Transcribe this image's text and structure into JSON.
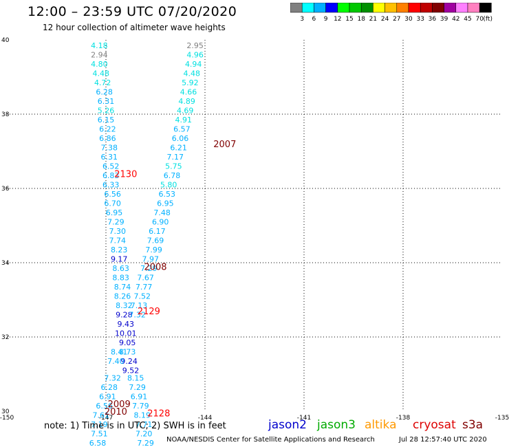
{
  "header": {
    "title": "12:00 – 23:59 UTC 07/20/2020",
    "subtitle": "12 hour collection of altimeter wave heights"
  },
  "colorbar": {
    "colors": [
      "#808080",
      "#00ffff",
      "#00b0ff",
      "#0000ff",
      "#00ff00",
      "#00c800",
      "#009000",
      "#ffff00",
      "#ffc000",
      "#ff8000",
      "#ff0000",
      "#c00000",
      "#800000",
      "#a000a0",
      "#ff80ff",
      "#ff80c0",
      "#000000"
    ],
    "labels": [
      "3",
      "6",
      "9",
      "12",
      "15",
      "18",
      "21",
      "24",
      "27",
      "30",
      "33",
      "36",
      "39",
      "42",
      "45",
      "70"
    ],
    "units": "(ft)"
  },
  "footer": {
    "note": "note: 1) Time is in UTC; 2) SWH is in feet",
    "credit": "NOAA/NESDIS Center for Satellite Applications and Research",
    "generated": "Jul 28 12:57:40 UTC 2020"
  },
  "legend": [
    {
      "name": "jason2",
      "color": "#0000cc"
    },
    {
      "name": "jason3",
      "color": "#00aa00"
    },
    {
      "name": "altika",
      "color": "#ff9900"
    },
    {
      "name": "cryosat",
      "color": "#dd0000"
    },
    {
      "name": "s3a",
      "color": "#800000"
    }
  ],
  "map": {
    "lon_range": [
      -150,
      -135
    ],
    "lat_range": [
      30,
      40
    ],
    "lon_ticks": [
      "-150",
      "-147",
      "-144",
      "-141",
      "-138",
      "-135"
    ],
    "lat_ticks": [
      "30",
      "32",
      "34",
      "36",
      "38",
      "40"
    ],
    "lon_tick_values": [
      -150,
      -147,
      -144,
      -141,
      -138,
      -135
    ],
    "lat_tick_values": [
      30,
      32,
      34,
      36,
      38,
      40
    ]
  },
  "pass_labels": [
    {
      "text": "2007",
      "lon": -143.4,
      "lat": 37.2,
      "color": "#800000"
    },
    {
      "text": "2130",
      "lon": -146.4,
      "lat": 36.4,
      "color": "#ff0000"
    },
    {
      "text": "2008",
      "lon": -145.5,
      "lat": 33.9,
      "color": "#800000"
    },
    {
      "text": "2129",
      "lon": -145.7,
      "lat": 32.7,
      "color": "#ff0000"
    },
    {
      "text": "2009",
      "lon": -146.6,
      "lat": 30.2,
      "color": "#800000"
    },
    {
      "text": "2010",
      "lon": -146.7,
      "lat": 30.0,
      "color": "#800000"
    },
    {
      "text": "2128",
      "lon": -145.4,
      "lat": 29.95,
      "color": "#ff0000"
    }
  ],
  "observations": [
    {
      "v": "4.18",
      "lon": -147.2,
      "lat": 39.85,
      "c": "#00e0e0"
    },
    {
      "v": "2.94",
      "lon": -147.2,
      "lat": 39.6,
      "c": "#808080"
    },
    {
      "v": "4.80",
      "lon": -147.2,
      "lat": 39.35,
      "c": "#00e0e0"
    },
    {
      "v": "4.48",
      "lon": -147.15,
      "lat": 39.1,
      "c": "#00e0e0"
    },
    {
      "v": "4.72",
      "lon": -147.1,
      "lat": 38.85,
      "c": "#00e0e0"
    },
    {
      "v": "6.28",
      "lon": -147.05,
      "lat": 38.6,
      "c": "#00b0ff"
    },
    {
      "v": "6.31",
      "lon": -147.0,
      "lat": 38.35,
      "c": "#00b0ff"
    },
    {
      "v": "5.26",
      "lon": -147.0,
      "lat": 38.1,
      "c": "#00e0e0"
    },
    {
      "v": "6.15",
      "lon": -147.0,
      "lat": 37.85,
      "c": "#00b0ff"
    },
    {
      "v": "6.22",
      "lon": -146.95,
      "lat": 37.6,
      "c": "#00b0ff"
    },
    {
      "v": "6.86",
      "lon": -146.95,
      "lat": 37.35,
      "c": "#00b0ff"
    },
    {
      "v": "7.38",
      "lon": -146.9,
      "lat": 37.1,
      "c": "#00b0ff"
    },
    {
      "v": "6.31",
      "lon": -146.9,
      "lat": 36.85,
      "c": "#00b0ff"
    },
    {
      "v": "6.52",
      "lon": -146.85,
      "lat": 36.6,
      "c": "#00b0ff"
    },
    {
      "v": "6.83",
      "lon": -146.85,
      "lat": 36.35,
      "c": "#00b0ff"
    },
    {
      "v": "6.33",
      "lon": -146.85,
      "lat": 36.1,
      "c": "#00b0ff"
    },
    {
      "v": "6.56",
      "lon": -146.8,
      "lat": 35.85,
      "c": "#00b0ff"
    },
    {
      "v": "6.70",
      "lon": -146.8,
      "lat": 35.6,
      "c": "#00b0ff"
    },
    {
      "v": "6.95",
      "lon": -146.75,
      "lat": 35.35,
      "c": "#00b0ff"
    },
    {
      "v": "7.29",
      "lon": -146.7,
      "lat": 35.1,
      "c": "#00b0ff"
    },
    {
      "v": "7.30",
      "lon": -146.65,
      "lat": 34.85,
      "c": "#00b0ff"
    },
    {
      "v": "7.74",
      "lon": -146.65,
      "lat": 34.6,
      "c": "#00b0ff"
    },
    {
      "v": "8.23",
      "lon": -146.6,
      "lat": 34.35,
      "c": "#00b0ff"
    },
    {
      "v": "9.17",
      "lon": -146.6,
      "lat": 34.1,
      "c": "#0000cc"
    },
    {
      "v": "8.63",
      "lon": -146.55,
      "lat": 33.85,
      "c": "#00b0ff"
    },
    {
      "v": "8.83",
      "lon": -146.55,
      "lat": 33.6,
      "c": "#00b0ff"
    },
    {
      "v": "8.74",
      "lon": -146.5,
      "lat": 33.35,
      "c": "#00b0ff"
    },
    {
      "v": "8.26",
      "lon": -146.5,
      "lat": 33.1,
      "c": "#00b0ff"
    },
    {
      "v": "8.32",
      "lon": -146.45,
      "lat": 32.85,
      "c": "#00b0ff"
    },
    {
      "v": "9.28",
      "lon": -146.45,
      "lat": 32.6,
      "c": "#0000cc"
    },
    {
      "v": "9.43",
      "lon": -146.4,
      "lat": 32.35,
      "c": "#0000cc"
    },
    {
      "v": "10.01",
      "lon": -146.4,
      "lat": 32.1,
      "c": "#0000cc"
    },
    {
      "v": "9.05",
      "lon": -146.35,
      "lat": 31.85,
      "c": "#0000cc"
    },
    {
      "v": "8.73",
      "lon": -146.35,
      "lat": 31.6,
      "c": "#00b0ff"
    },
    {
      "v": "9.24",
      "lon": -146.3,
      "lat": 31.35,
      "c": "#0000cc"
    },
    {
      "v": "9.52",
      "lon": -146.25,
      "lat": 31.1,
      "c": "#0000cc"
    },
    {
      "v": "8.41",
      "lon": -146.6,
      "lat": 31.6,
      "c": "#00b0ff"
    },
    {
      "v": "7.40",
      "lon": -146.7,
      "lat": 31.35,
      "c": "#00b0ff"
    },
    {
      "v": "7.32",
      "lon": -146.8,
      "lat": 30.9,
      "c": "#00b0ff"
    },
    {
      "v": "6.28",
      "lon": -146.9,
      "lat": 30.65,
      "c": "#00b0ff"
    },
    {
      "v": "6.91",
      "lon": -146.95,
      "lat": 30.4,
      "c": "#00b0ff"
    },
    {
      "v": "6.56",
      "lon": -147.05,
      "lat": 30.15,
      "c": "#00b0ff"
    },
    {
      "v": "7.61",
      "lon": -147.15,
      "lat": 29.9,
      "c": "#00b0ff"
    },
    {
      "v": "7.19",
      "lon": -147.2,
      "lat": 29.65,
      "c": "#00b0ff"
    },
    {
      "v": "7.51",
      "lon": -147.2,
      "lat": 29.4,
      "c": "#00b0ff"
    },
    {
      "v": "6.58",
      "lon": -147.25,
      "lat": 29.15,
      "c": "#00b0ff"
    },
    {
      "v": "2.95",
      "lon": -144.3,
      "lat": 39.85,
      "c": "#808080"
    },
    {
      "v": "4.96",
      "lon": -144.3,
      "lat": 39.6,
      "c": "#00e0e0"
    },
    {
      "v": "4.94",
      "lon": -144.35,
      "lat": 39.35,
      "c": "#00e0e0"
    },
    {
      "v": "4.48",
      "lon": -144.4,
      "lat": 39.1,
      "c": "#00e0e0"
    },
    {
      "v": "5.92",
      "lon": -144.45,
      "lat": 38.85,
      "c": "#00e0e0"
    },
    {
      "v": "4.66",
      "lon": -144.5,
      "lat": 38.6,
      "c": "#00e0e0"
    },
    {
      "v": "4.89",
      "lon": -144.55,
      "lat": 38.35,
      "c": "#00e0e0"
    },
    {
      "v": "4.69",
      "lon": -144.6,
      "lat": 38.1,
      "c": "#00e0e0"
    },
    {
      "v": "4.91",
      "lon": -144.65,
      "lat": 37.85,
      "c": "#00e0e0"
    },
    {
      "v": "6.57",
      "lon": -144.7,
      "lat": 37.6,
      "c": "#00b0ff"
    },
    {
      "v": "6.06",
      "lon": -144.75,
      "lat": 37.35,
      "c": "#00b0ff"
    },
    {
      "v": "6.21",
      "lon": -144.8,
      "lat": 37.1,
      "c": "#00b0ff"
    },
    {
      "v": "7.17",
      "lon": -144.9,
      "lat": 36.85,
      "c": "#00b0ff"
    },
    {
      "v": "5.75",
      "lon": -144.95,
      "lat": 36.6,
      "c": "#00e0e0"
    },
    {
      "v": "6.78",
      "lon": -145.0,
      "lat": 36.35,
      "c": "#00b0ff"
    },
    {
      "v": "5.80",
      "lon": -145.1,
      "lat": 36.1,
      "c": "#00e0e0"
    },
    {
      "v": "6.53",
      "lon": -145.15,
      "lat": 35.85,
      "c": "#00b0ff"
    },
    {
      "v": "6.95",
      "lon": -145.2,
      "lat": 35.6,
      "c": "#00b0ff"
    },
    {
      "v": "7.48",
      "lon": -145.3,
      "lat": 35.35,
      "c": "#00b0ff"
    },
    {
      "v": "6.90",
      "lon": -145.35,
      "lat": 35.1,
      "c": "#00b0ff"
    },
    {
      "v": "6.17",
      "lon": -145.45,
      "lat": 34.85,
      "c": "#00b0ff"
    },
    {
      "v": "7.69",
      "lon": -145.5,
      "lat": 34.6,
      "c": "#00b0ff"
    },
    {
      "v": "7.99",
      "lon": -145.55,
      "lat": 34.35,
      "c": "#00b0ff"
    },
    {
      "v": "7.97",
      "lon": -145.65,
      "lat": 34.1,
      "c": "#00b0ff"
    },
    {
      "v": "7.29",
      "lon": -145.7,
      "lat": 33.85,
      "c": "#00b0ff"
    },
    {
      "v": "7.67",
      "lon": -145.8,
      "lat": 33.6,
      "c": "#00b0ff"
    },
    {
      "v": "7.77",
      "lon": -145.85,
      "lat": 33.35,
      "c": "#00b0ff"
    },
    {
      "v": "7.52",
      "lon": -145.9,
      "lat": 33.1,
      "c": "#00b0ff"
    },
    {
      "v": "7.13",
      "lon": -146.0,
      "lat": 32.85,
      "c": "#00b0ff"
    },
    {
      "v": "7.32",
      "lon": -146.05,
      "lat": 32.6,
      "c": "#00b0ff"
    },
    {
      "v": "8.15",
      "lon": -146.1,
      "lat": 30.9,
      "c": "#00b0ff"
    },
    {
      "v": "7.29",
      "lon": -146.05,
      "lat": 30.65,
      "c": "#00b0ff"
    },
    {
      "v": "6.91",
      "lon": -146.0,
      "lat": 30.4,
      "c": "#00b0ff"
    },
    {
      "v": "7.79",
      "lon": -145.95,
      "lat": 30.15,
      "c": "#00b0ff"
    },
    {
      "v": "8.19",
      "lon": -145.9,
      "lat": 29.9,
      "c": "#00b0ff"
    },
    {
      "v": "7.71",
      "lon": -145.85,
      "lat": 29.65,
      "c": "#00b0ff"
    },
    {
      "v": "7.20",
      "lon": -145.85,
      "lat": 29.4,
      "c": "#00b0ff"
    },
    {
      "v": "7.29",
      "lon": -145.8,
      "lat": 29.15,
      "c": "#00b0ff"
    }
  ]
}
